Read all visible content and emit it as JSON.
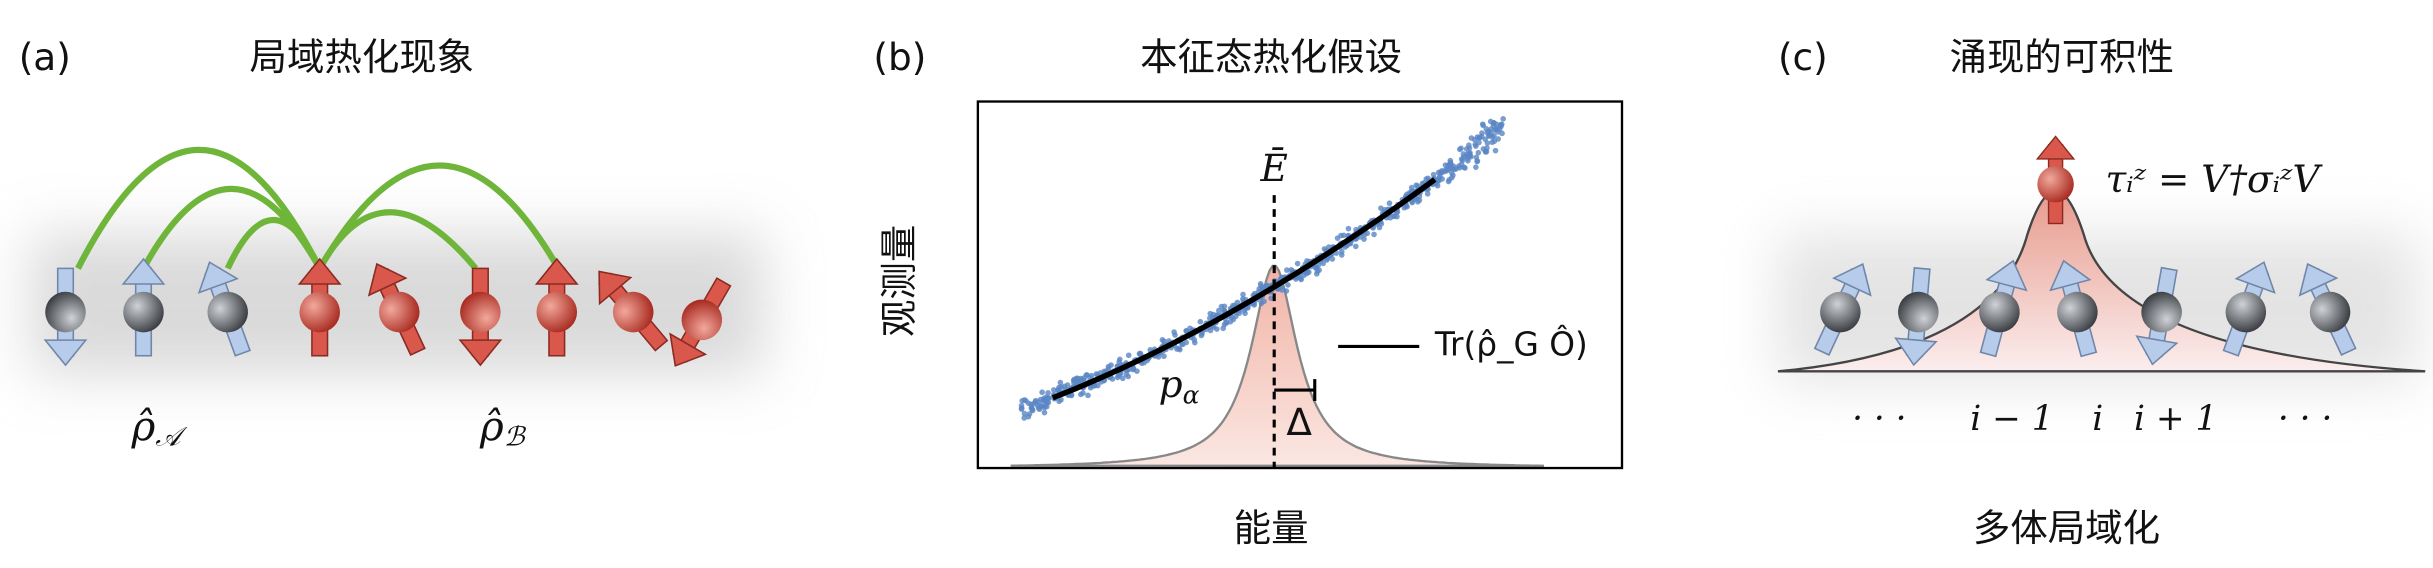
{
  "panels": [
    {
      "label": "(a)",
      "title": "局域热化现象",
      "annotations": [
        {
          "base": "ρ̂",
          "sub": "𝒜"
        },
        {
          "base": "ρ̂",
          "sub": "ℬ"
        }
      ]
    },
    {
      "label": "(b)",
      "title": "本征态热化假设",
      "y_label": "观测量",
      "x_label": "能量",
      "energy_label": "Ē",
      "distribution_label": {
        "base": "p",
        "sub": "α"
      },
      "width_label": "Δ",
      "legend": "Tr(ρ̂_G Ô)"
    },
    {
      "label": "(c)",
      "title": "涌现的可积性",
      "caption": "多体局域化",
      "formula": "τᵢᶻ = V†σᵢᶻV",
      "site_labels": [
        "· · ·",
        "i − 1",
        "i",
        "i + 1",
        "· · ·"
      ]
    }
  ]
}
